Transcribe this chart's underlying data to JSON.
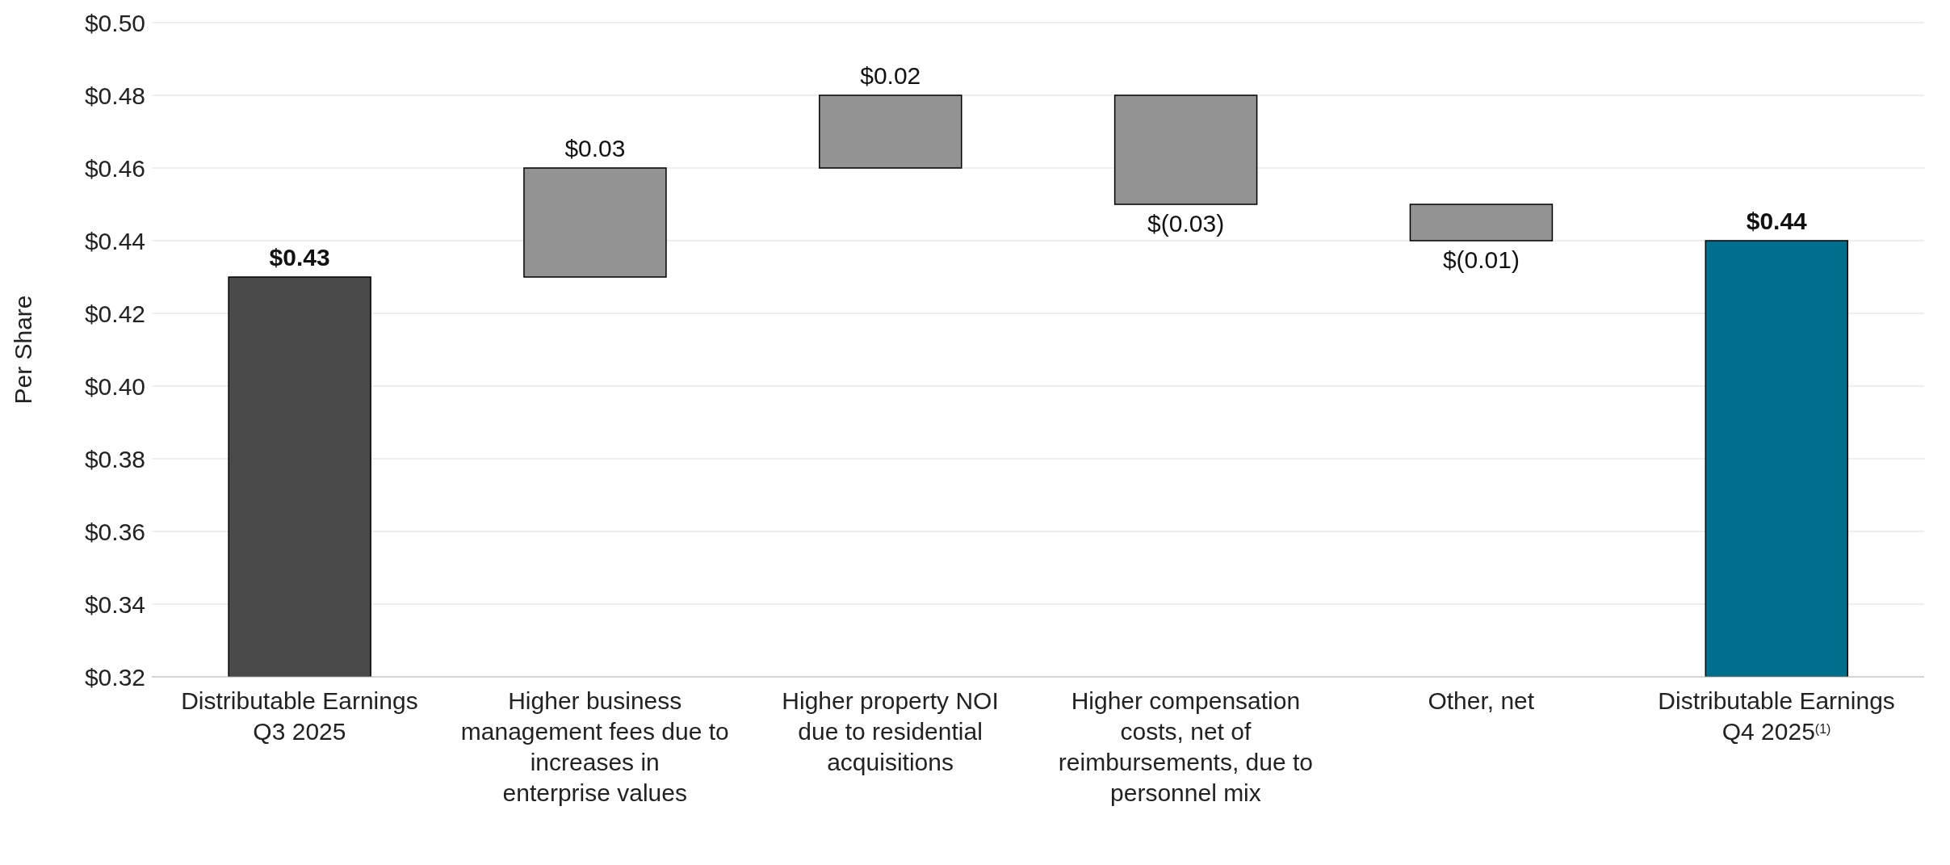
{
  "chart_data": {
    "type": "bar",
    "ylabel": "Per Share",
    "categories": [
      "Distributable Earnings Q3 2025",
      "Higher business management fees due to increases in enterprise values",
      "Higher property NOI due to residential acquisitions",
      "Higher compensation costs, net of reimbursements, due to personnel mix",
      "Other, net",
      "Distributable Earnings Q4 2025$^{(1)}$"
    ],
    "values": [
      0.43,
      0.03,
      0.02,
      -0.03,
      -0.01,
      0.44
    ],
    "base": [
      null,
      0.43,
      0.46,
      0.48,
      0.45,
      null
    ],
    "colors": [
      "#4a4a4a",
      "#939393",
      "#939393",
      "#939393",
      "#939393",
      "#006f8e"
    ],
    "value_labels": [
      "$0.43",
      "$0.03",
      "$0.02",
      "$(0.03)",
      "$(0.01)",
      "$0.44"
    ],
    "ylim": [
      0.32,
      0.5
    ],
    "yticks": [
      {
        "value": 0.32,
        "label": "$0.32"
      },
      {
        "value": 0.34,
        "label": "$0.34"
      },
      {
        "value": 0.36,
        "label": "$0.36"
      },
      {
        "value": 0.38,
        "label": "$0.38"
      },
      {
        "value": 0.4,
        "label": "$0.40"
      },
      {
        "value": 0.42,
        "label": "$0.42"
      },
      {
        "value": 0.44,
        "label": "$0.44"
      },
      {
        "value": 0.46,
        "label": "$0.46"
      },
      {
        "value": 0.48,
        "label": "$0.48"
      },
      {
        "value": 0.5,
        "label": "$0.50"
      }
    ],
    "grid": "y",
    "legend": false
  }
}
